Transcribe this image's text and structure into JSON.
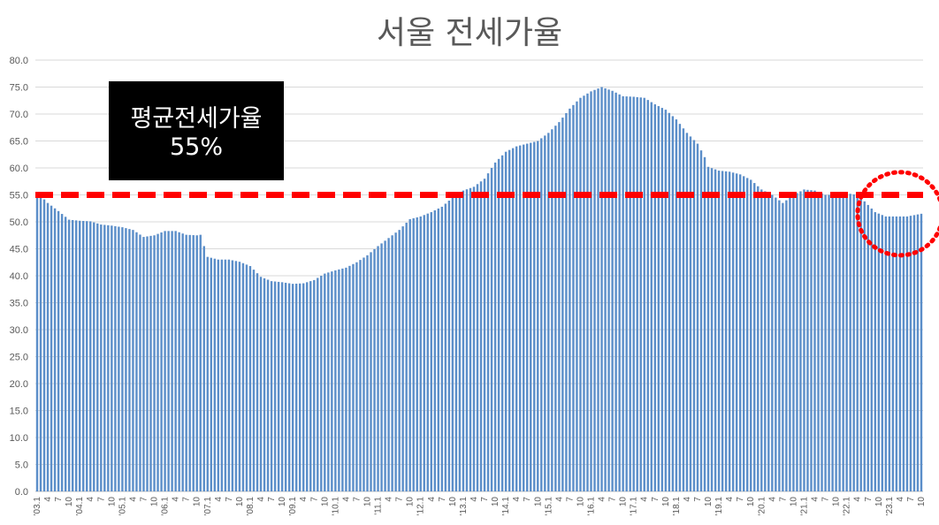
{
  "chart_data": {
    "type": "bar",
    "title": "서울 전세가율",
    "ylim": [
      0,
      80
    ],
    "y_ticks": [
      "0.0",
      "5.0",
      "10.0",
      "15.0",
      "20.0",
      "25.0",
      "30.0",
      "35.0",
      "40.0",
      "45.0",
      "50.0",
      "55.0",
      "60.0",
      "65.0",
      "70.0",
      "75.0",
      "80.0"
    ],
    "grid": true,
    "bar_color": "#5b8ec9",
    "categories": [
      "'03.1",
      "4",
      "7",
      "10",
      "'04.1",
      "4",
      "7",
      "10",
      "'05.1",
      "4",
      "7",
      "10",
      "'06.1",
      "4",
      "7",
      "10",
      "'07.1",
      "4",
      "7",
      "10",
      "'08.1",
      "4",
      "7",
      "10",
      "'09.1",
      "4",
      "7",
      "10",
      "'10.1",
      "4",
      "7",
      "10",
      "'11.1",
      "4",
      "7",
      "10",
      "'12.1",
      "4",
      "7",
      "10",
      "'13.1",
      "4",
      "7",
      "10",
      "'14.1",
      "4",
      "7",
      "10",
      "'15.1",
      "4",
      "7",
      "10",
      "'16.1",
      "4",
      "7",
      "10",
      "'17.1",
      "4",
      "7",
      "10",
      "'18.1",
      "4",
      "7",
      "10",
      "'19.1",
      "4",
      "7",
      "10",
      "'20.1",
      "4",
      "7",
      "10",
      "'21.1",
      "4",
      "7",
      "10",
      "'22.1",
      "4",
      "7",
      "10",
      "'23.1",
      "4",
      "7",
      "10"
    ],
    "anchors": [
      {
        "m": 0,
        "v": 55.5
      },
      {
        "m": 3,
        "v": 53.5
      },
      {
        "m": 6,
        "v": 52.0
      },
      {
        "m": 9,
        "v": 50.4
      },
      {
        "m": 12,
        "v": 50.2
      },
      {
        "m": 15,
        "v": 50.1
      },
      {
        "m": 18,
        "v": 49.5
      },
      {
        "m": 21,
        "v": 49.3
      },
      {
        "m": 24,
        "v": 49.0
      },
      {
        "m": 27,
        "v": 48.5
      },
      {
        "m": 30,
        "v": 47.2
      },
      {
        "m": 33,
        "v": 47.5
      },
      {
        "m": 36,
        "v": 48.3
      },
      {
        "m": 39,
        "v": 48.3
      },
      {
        "m": 42,
        "v": 47.6
      },
      {
        "m": 45,
        "v": 47.5
      },
      {
        "m": 46,
        "v": 47.6
      },
      {
        "m": 47,
        "v": 45.5
      },
      {
        "m": 48,
        "v": 43.5
      },
      {
        "m": 51,
        "v": 43.0
      },
      {
        "m": 54,
        "v": 43.0
      },
      {
        "m": 57,
        "v": 42.6
      },
      {
        "m": 60,
        "v": 41.8
      },
      {
        "m": 63,
        "v": 39.8
      },
      {
        "m": 66,
        "v": 39.0
      },
      {
        "m": 69,
        "v": 38.8
      },
      {
        "m": 72,
        "v": 38.5
      },
      {
        "m": 75,
        "v": 38.6
      },
      {
        "m": 78,
        "v": 39.2
      },
      {
        "m": 81,
        "v": 40.4
      },
      {
        "m": 84,
        "v": 41.0
      },
      {
        "m": 87,
        "v": 41.5
      },
      {
        "m": 90,
        "v": 42.5
      },
      {
        "m": 93,
        "v": 43.8
      },
      {
        "m": 96,
        "v": 45.5
      },
      {
        "m": 99,
        "v": 47.0
      },
      {
        "m": 102,
        "v": 48.5
      },
      {
        "m": 105,
        "v": 50.5
      },
      {
        "m": 108,
        "v": 51.0
      },
      {
        "m": 111,
        "v": 51.8
      },
      {
        "m": 114,
        "v": 52.8
      },
      {
        "m": 117,
        "v": 54.5
      },
      {
        "m": 120,
        "v": 55.8
      },
      {
        "m": 123,
        "v": 56.5
      },
      {
        "m": 126,
        "v": 58.0
      },
      {
        "m": 129,
        "v": 61.0
      },
      {
        "m": 132,
        "v": 63.0
      },
      {
        "m": 135,
        "v": 64.0
      },
      {
        "m": 138,
        "v": 64.5
      },
      {
        "m": 141,
        "v": 65.0
      },
      {
        "m": 144,
        "v": 66.5
      },
      {
        "m": 147,
        "v": 68.5
      },
      {
        "m": 150,
        "v": 71.0
      },
      {
        "m": 153,
        "v": 73.0
      },
      {
        "m": 156,
        "v": 74.2
      },
      {
        "m": 159,
        "v": 75.0
      },
      {
        "m": 162,
        "v": 74.3
      },
      {
        "m": 165,
        "v": 73.3
      },
      {
        "m": 168,
        "v": 73.2
      },
      {
        "m": 171,
        "v": 73.0
      },
      {
        "m": 174,
        "v": 71.8
      },
      {
        "m": 177,
        "v": 70.8
      },
      {
        "m": 180,
        "v": 69.0
      },
      {
        "m": 183,
        "v": 66.5
      },
      {
        "m": 186,
        "v": 64.5
      },
      {
        "m": 188,
        "v": 62.0
      },
      {
        "m": 189,
        "v": 60.2
      },
      {
        "m": 192,
        "v": 59.5
      },
      {
        "m": 195,
        "v": 59.3
      },
      {
        "m": 198,
        "v": 58.8
      },
      {
        "m": 201,
        "v": 57.8
      },
      {
        "m": 204,
        "v": 56.0
      },
      {
        "m": 207,
        "v": 55.0
      },
      {
        "m": 210,
        "v": 53.5
      },
      {
        "m": 213,
        "v": 55.0
      },
      {
        "m": 216,
        "v": 56.0
      },
      {
        "m": 219,
        "v": 55.8
      },
      {
        "m": 222,
        "v": 55.0
      },
      {
        "m": 225,
        "v": 55.0
      },
      {
        "m": 228,
        "v": 55.3
      },
      {
        "m": 231,
        "v": 55.0
      },
      {
        "m": 233,
        "v": 53.8
      },
      {
        "m": 236,
        "v": 51.8
      },
      {
        "m": 239,
        "v": 51.0
      },
      {
        "m": 242,
        "v": 51.0
      },
      {
        "m": 245,
        "v": 51.0
      },
      {
        "m": 249,
        "v": 51.5
      }
    ],
    "reference_line": {
      "value": 55,
      "color": "#ff0000"
    },
    "annotation_box": {
      "line1": "평균전세가율",
      "line2": "55%"
    },
    "highlight": {
      "center_month": 243,
      "center_value": 51.5,
      "color": "#ff0000",
      "style": "dotted"
    }
  }
}
